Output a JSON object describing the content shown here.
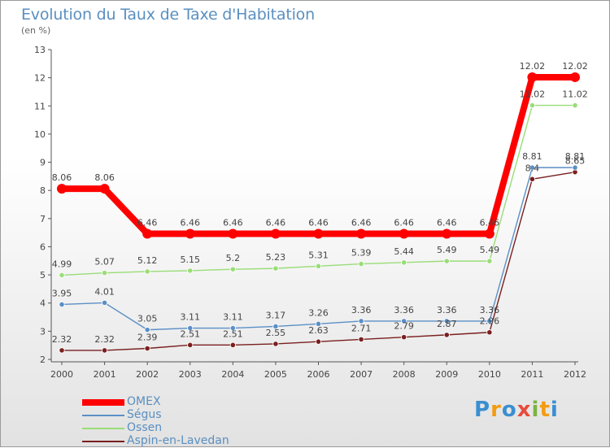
{
  "title": "Evolution du Taux de Taxe d'Habitation",
  "subtitle": "(en %)",
  "logo_text": "Proxiti",
  "chart_data": {
    "type": "line",
    "title": "Evolution du Taux de Taxe d'Habitation",
    "ylabel": "(en %)",
    "xlabel": "",
    "x": [
      "2000",
      "2001",
      "2002",
      "2003",
      "2004",
      "2005",
      "2006",
      "2007",
      "2008",
      "2009",
      "2010",
      "2011",
      "2012"
    ],
    "ylim": [
      2,
      13
    ],
    "yticks": [
      2,
      3,
      4,
      5,
      6,
      7,
      8,
      9,
      10,
      11,
      12,
      13
    ],
    "grid": false,
    "legend_position": "bottom-left",
    "series": [
      {
        "name": "OMEX",
        "color": "#ff0000",
        "values": [
          8.06,
          8.06,
          6.46,
          6.46,
          6.46,
          6.46,
          6.46,
          6.46,
          6.46,
          6.46,
          6.46,
          12.02,
          12.02
        ],
        "labels": [
          "8.06",
          "8.06",
          "6.46",
          "6.46",
          "6.46",
          "6.46",
          "6.46",
          "6.46",
          "6.46",
          "6.46",
          "6.46",
          "12.02",
          "12.02"
        ]
      },
      {
        "name": "Ségus",
        "color": "#5b8fc6",
        "values": [
          3.95,
          4.01,
          3.05,
          3.11,
          3.11,
          3.17,
          3.26,
          3.36,
          3.36,
          3.36,
          3.36,
          8.81,
          8.81
        ],
        "labels": [
          "3.95",
          "4.01",
          "3.05",
          "3.11",
          "3.11",
          "3.17",
          "3.26",
          "3.36",
          "3.36",
          "3.36",
          "3.36",
          "8.81",
          "8.81"
        ]
      },
      {
        "name": "Ossen",
        "color": "#99dd77",
        "values": [
          4.99,
          5.07,
          5.12,
          5.15,
          5.2,
          5.23,
          5.31,
          5.39,
          5.44,
          5.49,
          5.49,
          11.02,
          11.02
        ],
        "labels": [
          "4.99",
          "5.07",
          "5.12",
          "5.15",
          "5.2",
          "5.23",
          "5.31",
          "5.39",
          "5.44",
          "5.49",
          "5.49",
          "11.02",
          "11.02"
        ]
      },
      {
        "name": "Aspin-en-Lavedan",
        "color": "#7a1f1f",
        "values": [
          2.32,
          2.32,
          2.39,
          2.51,
          2.51,
          2.55,
          2.63,
          2.71,
          2.79,
          2.87,
          2.96,
          8.4,
          8.65
        ],
        "labels": [
          "2.32",
          "2.32",
          "2.39",
          "2.51",
          "2.51",
          "2.55",
          "2.63",
          "2.71",
          "2.79",
          "2.87",
          "2.96",
          "8.4",
          "8.65"
        ]
      }
    ]
  }
}
